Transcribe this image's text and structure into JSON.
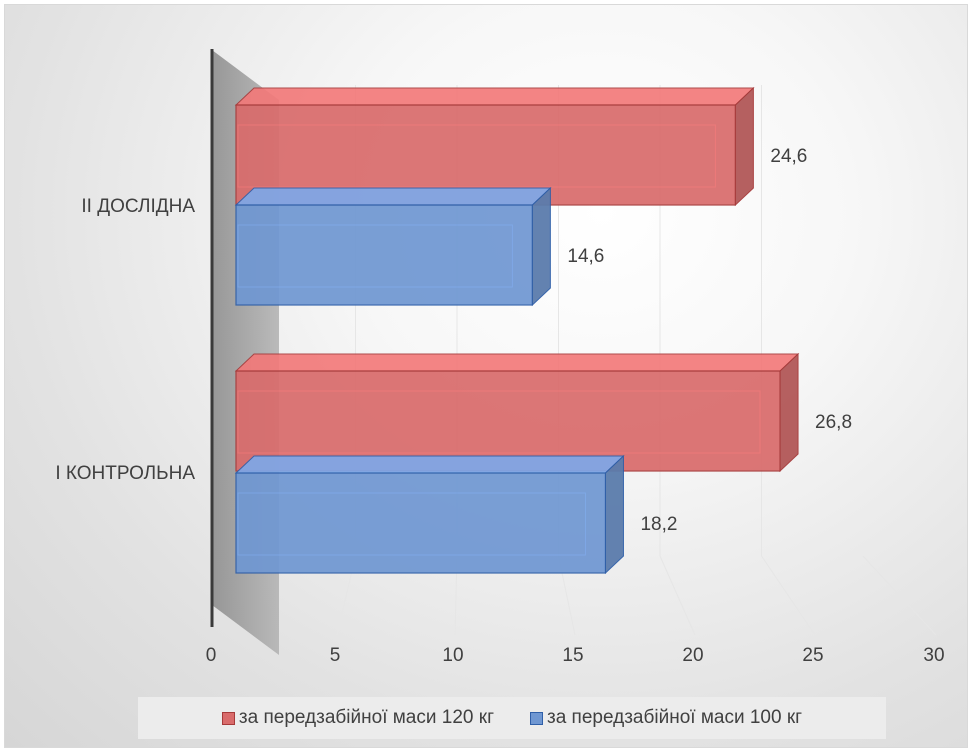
{
  "chart_data": {
    "type": "bar",
    "orientation": "horizontal",
    "style": "3d",
    "categories": [
      "II ДОСЛІДНА",
      "І КОНТРОЛЬНА"
    ],
    "series": [
      {
        "name": "за передзабійної маси 120 кг",
        "values": [
          24.6,
          26.8
        ],
        "color": "#d96b6b",
        "edge": "#a63a3a"
      },
      {
        "name": "за передзабійної маси 100 кг",
        "values": [
          14.6,
          18.2
        ],
        "color": "#6f97d2",
        "edge": "#2f5fa8"
      }
    ],
    "data_labels": {
      "II ДОСЛІДНА": [
        "24,6",
        "14,6"
      ],
      "І КОНТРОЛЬНА": [
        "26,8",
        "18,2"
      ]
    },
    "xticks": [
      "0",
      "5",
      "10",
      "15",
      "20",
      "25",
      "30"
    ],
    "xlim": [
      0,
      30
    ],
    "grid": true,
    "legend_position": "bottom",
    "title": "",
    "xlabel": "",
    "ylabel": ""
  }
}
